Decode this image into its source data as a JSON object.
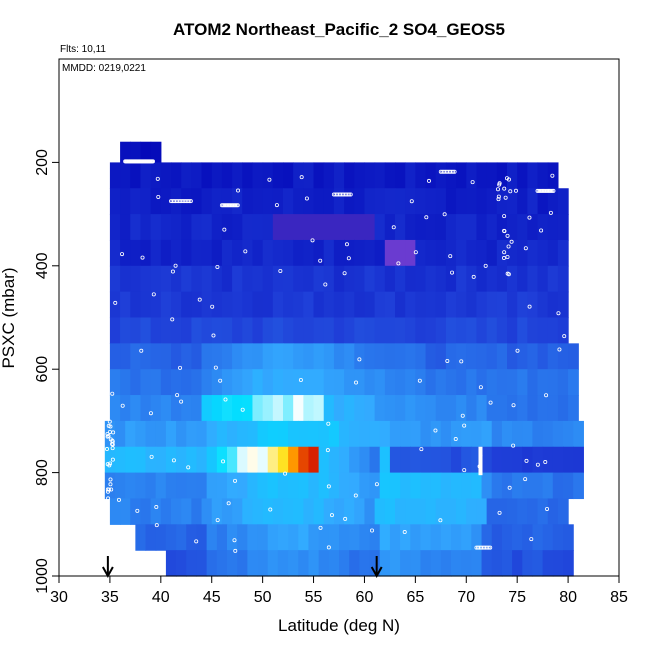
{
  "chart_data": {
    "type": "heatmap",
    "title": "ATOM2 Northeast_Pacific_2 SO4_GEOS5",
    "annotations": {
      "flights": "Flts: 10,11",
      "dates": "MMDD: 0219,0221"
    },
    "xlabel": "Latitude (deg N)",
    "ylabel": "PSXC (mbar)",
    "xlim": [
      30,
      85
    ],
    "ylim": [
      1000,
      0
    ],
    "x_ticks": [
      30,
      35,
      40,
      45,
      50,
      55,
      60,
      65,
      70,
      75,
      80,
      85
    ],
    "y_ticks": [
      200,
      400,
      600,
      800,
      1000
    ],
    "colors": {
      "dark_blue": "#0000b4",
      "mid_blue": "#1f3fd8",
      "light_blue": "#33aaff",
      "cyan": "#00ddff",
      "white": "#ffffff",
      "yellow": "#ffdd00",
      "orange": "#ff8800",
      "red": "#cc0000",
      "purple": "#6a3bd0",
      "marker": "#ffffff"
    },
    "bands": [
      {
        "p": 185,
        "lat_from": 36,
        "lat_to": 40,
        "level": 0.05
      },
      {
        "p": 225,
        "lat_from": 35,
        "lat_to": 79,
        "level": 0.08
      },
      {
        "p": 275,
        "lat_from": 35,
        "lat_to": 80,
        "level": 0.1
      },
      {
        "p": 325,
        "lat_from": 35,
        "lat_to": 80,
        "level": 0.12
      },
      {
        "p": 375,
        "lat_from": 35,
        "lat_to": 80,
        "level": 0.12
      },
      {
        "p": 425,
        "lat_from": 35,
        "lat_to": 80,
        "level": 0.16
      },
      {
        "p": 475,
        "lat_from": 35,
        "lat_to": 80,
        "level": 0.18
      },
      {
        "p": 525,
        "lat_from": 35,
        "lat_to": 80,
        "level": 0.22
      },
      {
        "p": 575,
        "lat_from": 35,
        "lat_to": 81,
        "level": 0.3
      },
      {
        "p": 625,
        "lat_from": 35,
        "lat_to": 81,
        "level": 0.35
      },
      {
        "p": 675,
        "lat_from": 35,
        "lat_to": 81,
        "level": 0.4
      },
      {
        "p": 725,
        "lat_from": 34.5,
        "lat_to": 81,
        "level": 0.45
      },
      {
        "p": 775,
        "lat_from": 34.5,
        "lat_to": 81,
        "level": 0.55
      },
      {
        "p": 825,
        "lat_from": 34.5,
        "lat_to": 81,
        "level": 0.4
      },
      {
        "p": 875,
        "lat_from": 35,
        "lat_to": 80,
        "level": 0.38
      },
      {
        "p": 925,
        "lat_from": 37.5,
        "lat_to": 80,
        "level": 0.3
      },
      {
        "p": 975,
        "lat_from": 40.5,
        "lat_to": 80.5,
        "level": 0.25
      }
    ],
    "peak": {
      "lat_range": [
        50,
        56
      ],
      "p_range": [
        750,
        800
      ],
      "note": "maximum"
    },
    "arrows_lat": [
      34.8,
      61.2
    ]
  }
}
